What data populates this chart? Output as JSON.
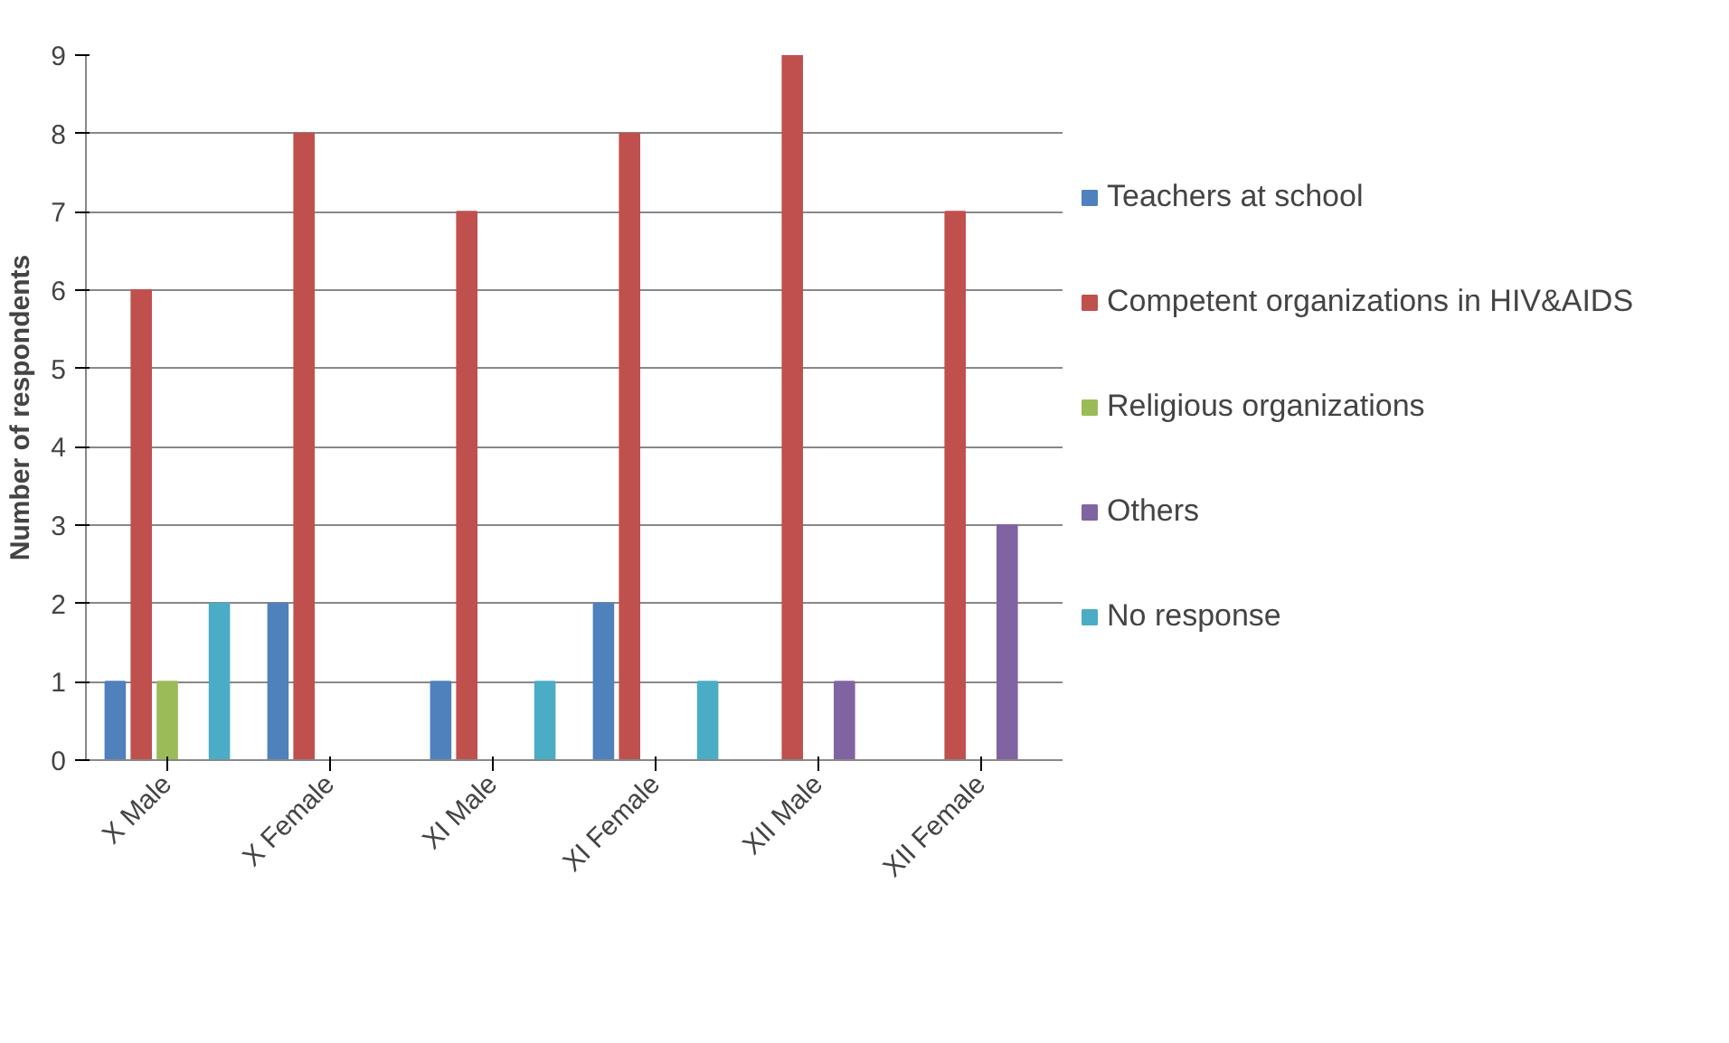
{
  "chart_data": {
    "type": "bar",
    "ylabel": "Number of respondents",
    "categories": [
      "X Male",
      "X Female",
      "XI Male",
      "XI Female",
      "XII Male",
      "XII Female"
    ],
    "series": [
      {
        "name": "Teachers at school",
        "color": "#4f81bd",
        "values": [
          1,
          2,
          1,
          2,
          0,
          0
        ]
      },
      {
        "name": "Competent organizations in HIV&AIDS",
        "color": "#c0504d",
        "values": [
          6,
          8,
          7,
          8,
          9,
          7
        ]
      },
      {
        "name": "Religious organizations",
        "color": "#9bbb59",
        "values": [
          1,
          0,
          0,
          0,
          0,
          0
        ]
      },
      {
        "name": "Others",
        "color": "#8064a2",
        "values": [
          0,
          0,
          0,
          0,
          1,
          3
        ]
      },
      {
        "name": "No response",
        "color": "#4bacc6",
        "values": [
          2,
          0,
          1,
          1,
          0,
          0
        ]
      }
    ],
    "ylim": [
      0,
      9
    ],
    "yticks": [
      0,
      1,
      2,
      3,
      4,
      5,
      6,
      7,
      8,
      9
    ],
    "grid": "y",
    "legend": "right"
  }
}
